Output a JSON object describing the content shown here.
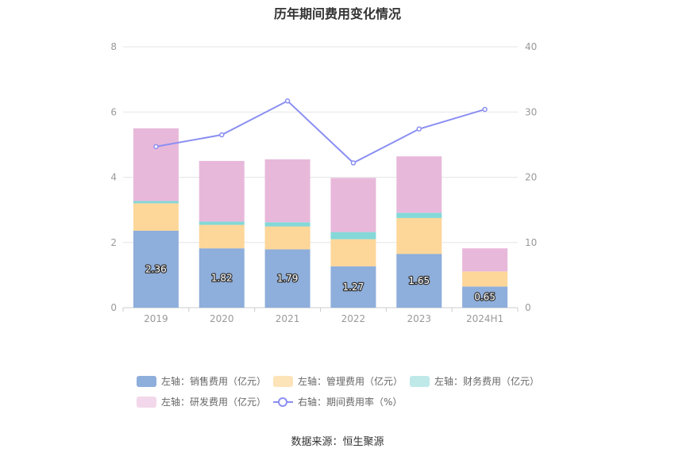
{
  "chart_data": {
    "type": "bar",
    "title": "历年期间费用变化情况",
    "categories": [
      "2019",
      "2020",
      "2021",
      "2022",
      "2023",
      "2024H1"
    ],
    "left_axis": {
      "ylim": [
        0,
        8
      ],
      "ticks": [
        "0",
        "2",
        "4",
        "6",
        "8"
      ]
    },
    "right_axis": {
      "ylim": [
        0,
        40
      ],
      "ticks": [
        "0",
        "10",
        "20",
        "30",
        "40"
      ]
    },
    "stacked": true,
    "series": [
      {
        "name": "左轴：销售费用（亿元）",
        "axis": "left",
        "color": "#8eaedb",
        "values": [
          2.36,
          1.82,
          1.79,
          1.27,
          1.65,
          0.65
        ],
        "labels": [
          "2.36",
          "1.82",
          "1.79",
          "1.27",
          "1.65",
          "0.65"
        ]
      },
      {
        "name": "左轴：管理费用（亿元）",
        "axis": "left",
        "color": "#fdd699",
        "values": [
          0.84,
          0.72,
          0.7,
          0.83,
          1.1,
          0.46
        ]
      },
      {
        "name": "左轴：财务费用（亿元）",
        "axis": "left",
        "color": "#84d8d8",
        "values": [
          0.07,
          0.1,
          0.13,
          0.22,
          0.16,
          0.0
        ]
      },
      {
        "name": "左轴：研发费用（亿元）",
        "axis": "left",
        "color": "#e8b8da",
        "values": [
          2.23,
          1.86,
          1.93,
          1.66,
          1.73,
          0.71
        ]
      },
      {
        "name": "右轴：期间费用率（%）",
        "axis": "right",
        "type": "line",
        "color": "#8b8ff2",
        "values": [
          24.7,
          26.5,
          31.7,
          22.2,
          27.4,
          30.4
        ]
      }
    ],
    "legend_position": "bottom",
    "grid": true
  },
  "source_text": "数据来源：恒生聚源"
}
